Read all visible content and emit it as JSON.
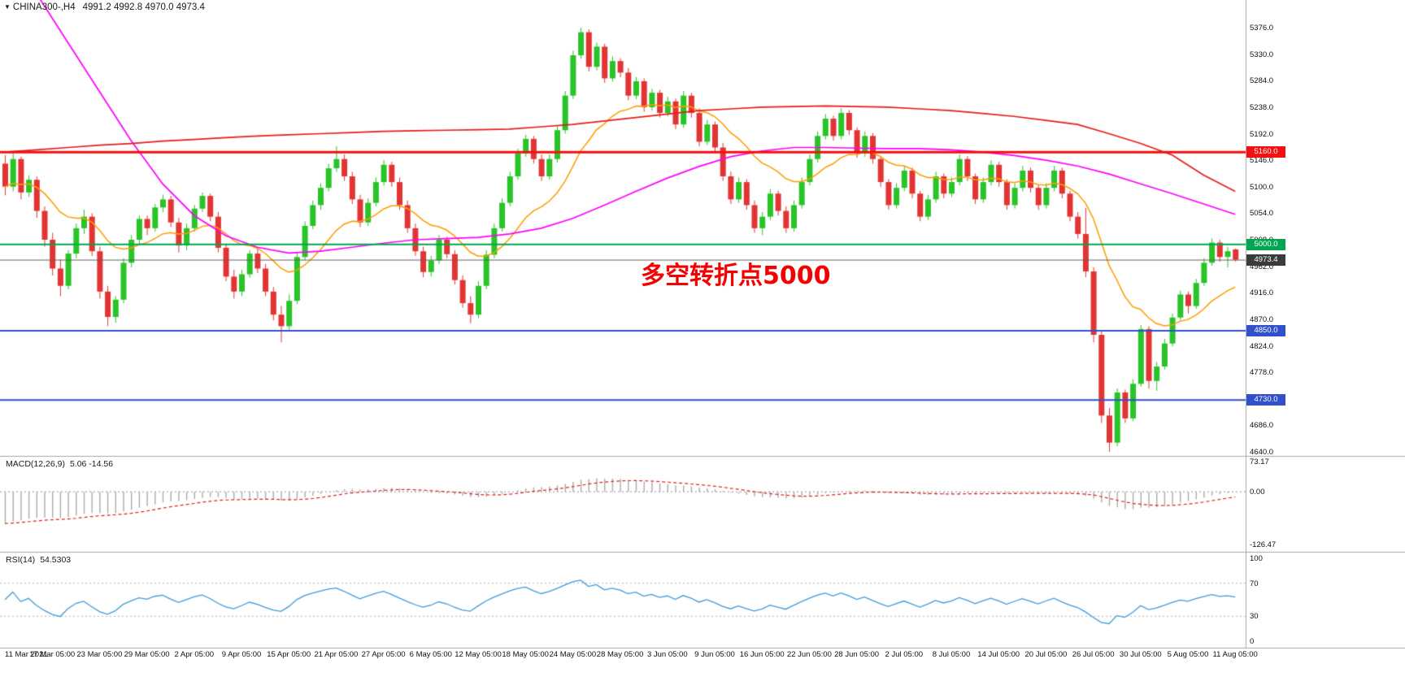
{
  "header": {
    "dropdown_icon": "▼",
    "symbol_label": "CHINA300-,H4",
    "ohlc_label": "4991.2 4992.8 4970.0 4973.4"
  },
  "annotation": {
    "text": "多空转折点5000",
    "color": "#f40000"
  },
  "indicators": {
    "macd": {
      "name": "MACD(12,26,9)",
      "values_label": "5.06 -14.56"
    },
    "rsi": {
      "name": "RSI(14)",
      "value_label": "54.5303"
    }
  },
  "levels": [
    {
      "label": "5160.0",
      "price": 5160.0,
      "color": "#f50f0f",
      "line_width": 3
    },
    {
      "label": "5000.0",
      "price": 5000.0,
      "color": "#00a651",
      "line_width": 2
    },
    {
      "label": "4850.0",
      "price": 4850.0,
      "color": "#3050cc",
      "line_width": 2
    },
    {
      "label": "4730.0",
      "price": 4730.0,
      "color": "#3050cc",
      "line_width": 2
    }
  ],
  "current_price": {
    "label": "4973.4",
    "price": 4973.4,
    "line_color": "#606060",
    "badge_bg": "#3b3b3b"
  },
  "axes": {
    "price_ticks": [
      "5376.0",
      "5330.0",
      "5284.0",
      "5238.0",
      "5192.0",
      "5146.0",
      "5100.0",
      "5054.0",
      "5008.0",
      "4962.0",
      "4916.0",
      "4870.0",
      "4824.0",
      "4778.0",
      "4732.0",
      "4686.0",
      "4640.0"
    ],
    "macd_ticks": [
      {
        "label": "73.17",
        "value": 73.17
      },
      {
        "label": "0.00",
        "value": 0
      },
      {
        "label": "-126.47",
        "value": -126.47
      }
    ],
    "rsi_ticks": [
      {
        "label": "100",
        "value": 100
      },
      {
        "label": "70",
        "value": 70
      },
      {
        "label": "30",
        "value": 30
      },
      {
        "label": "0",
        "value": 0
      }
    ],
    "time_labels": [
      "11 Mar 2021",
      "17 Mar 05:00",
      "23 Mar 05:00",
      "29 Mar 05:00",
      "2 Apr 05:00",
      "9 Apr 05:00",
      "15 Apr 05:00",
      "21 Apr 05:00",
      "27 Apr 05:00",
      "6 May 05:00",
      "12 May 05:00",
      "18 May 05:00",
      "24 May 05:00",
      "28 May 05:00",
      "3 Jun 05:00",
      "9 Jun 05:00",
      "16 Jun 05:00",
      "22 Jun 05:00",
      "28 Jun 05:00",
      "2 Jul 05:00",
      "8 Jul 05:00",
      "14 Jul 05:00",
      "20 Jul 05:00",
      "26 Jul 05:00",
      "30 Jul 05:00",
      "5 Aug 05:00",
      "11 Aug 05:00"
    ]
  },
  "colors": {
    "background": "#ffffff",
    "bull": "#28c428",
    "bear": "#e33434",
    "separator": "#a8a8a8",
    "macd_hist": "#ababab",
    "macd_signal": "#dd2222",
    "rsi_line": "#3e9bdc",
    "dotted_level": "#b5b5c5",
    "axis_text": "#111111"
  },
  "chart_data": {
    "type": "candlestick",
    "symbol": "CHINA300-",
    "timeframe": "H4",
    "last_ohlc": {
      "open": 4991.2,
      "high": 4992.8,
      "low": 4970.0,
      "close": 4973.4
    },
    "price_axis_range": [
      4640,
      5376
    ],
    "x_label_step": 6,
    "candles": [
      [
        5140,
        5155,
        5085,
        5100
      ],
      [
        5100,
        5160,
        5092,
        5148
      ],
      [
        5148,
        5152,
        5078,
        5090
      ],
      [
        5090,
        5120,
        5082,
        5112
      ],
      [
        5112,
        5118,
        5046,
        5058
      ],
      [
        5058,
        5066,
        4996,
        5008
      ],
      [
        5008,
        5020,
        4946,
        4958
      ],
      [
        4958,
        4974,
        4910,
        4928
      ],
      [
        4928,
        4990,
        4922,
        4984
      ],
      [
        4984,
        5036,
        4976,
        5028
      ],
      [
        5028,
        5060,
        5018,
        5048
      ],
      [
        5048,
        5054,
        4980,
        4988
      ],
      [
        4988,
        4996,
        4906,
        4918
      ],
      [
        4918,
        4928,
        4858,
        4874
      ],
      [
        4874,
        4910,
        4864,
        4904
      ],
      [
        4904,
        4976,
        4898,
        4968
      ],
      [
        4968,
        5016,
        4960,
        5008
      ],
      [
        5008,
        5050,
        5000,
        5044
      ],
      [
        5044,
        5050,
        5016,
        5028
      ],
      [
        5028,
        5070,
        5022,
        5064
      ],
      [
        5064,
        5086,
        5056,
        5078
      ],
      [
        5078,
        5084,
        5030,
        5038
      ],
      [
        5038,
        5046,
        4986,
        4998
      ],
      [
        4998,
        5036,
        4990,
        5028
      ],
      [
        5028,
        5068,
        5022,
        5062
      ],
      [
        5062,
        5090,
        5056,
        5084
      ],
      [
        5084,
        5088,
        5040,
        5048
      ],
      [
        5048,
        5056,
        4986,
        4994
      ],
      [
        4994,
        5000,
        4936,
        4944
      ],
      [
        4944,
        4956,
        4906,
        4918
      ],
      [
        4918,
        4956,
        4910,
        4948
      ],
      [
        4948,
        4990,
        4942,
        4984
      ],
      [
        4984,
        4994,
        4950,
        4958
      ],
      [
        4958,
        4966,
        4910,
        4918
      ],
      [
        4918,
        4926,
        4868,
        4878
      ],
      [
        4878,
        4893,
        4830,
        4858
      ],
      [
        4858,
        4913,
        4852,
        4902
      ],
      [
        4902,
        4986,
        4896,
        4978
      ],
      [
        4978,
        5040,
        4972,
        5032
      ],
      [
        5032,
        5076,
        5026,
        5068
      ],
      [
        5068,
        5106,
        5060,
        5098
      ],
      [
        5098,
        5140,
        5092,
        5132
      ],
      [
        5132,
        5170,
        5126,
        5148
      ],
      [
        5148,
        5156,
        5110,
        5118
      ],
      [
        5118,
        5126,
        5070,
        5078
      ],
      [
        5078,
        5086,
        5030,
        5038
      ],
      [
        5038,
        5080,
        5032,
        5072
      ],
      [
        5072,
        5116,
        5066,
        5108
      ],
      [
        5108,
        5146,
        5102,
        5138
      ],
      [
        5138,
        5143,
        5100,
        5108
      ],
      [
        5108,
        5116,
        5060,
        5068
      ],
      [
        5068,
        5076,
        5020,
        5028
      ],
      [
        5028,
        5036,
        4980,
        4988
      ],
      [
        4988,
        4996,
        4943,
        4952
      ],
      [
        4952,
        4980,
        4944,
        4972
      ],
      [
        4972,
        5016,
        4966,
        5008
      ],
      [
        5008,
        5013,
        4976,
        4983
      ],
      [
        4983,
        4990,
        4930,
        4938
      ],
      [
        4938,
        4946,
        4890,
        4898
      ],
      [
        4898,
        4910,
        4863,
        4878
      ],
      [
        4878,
        4936,
        4872,
        4928
      ],
      [
        4928,
        4990,
        4922,
        4982
      ],
      [
        4982,
        5036,
        4976,
        5028
      ],
      [
        5028,
        5080,
        5022,
        5072
      ],
      [
        5072,
        5126,
        5066,
        5118
      ],
      [
        5118,
        5166,
        5112,
        5158
      ],
      [
        5158,
        5190,
        5152,
        5183
      ],
      [
        5183,
        5188,
        5140,
        5148
      ],
      [
        5148,
        5156,
        5110,
        5118
      ],
      [
        5118,
        5156,
        5112,
        5148
      ],
      [
        5148,
        5206,
        5142,
        5198
      ],
      [
        5198,
        5266,
        5192,
        5258
      ],
      [
        5258,
        5336,
        5252,
        5328
      ],
      [
        5328,
        5376,
        5322,
        5368
      ],
      [
        5368,
        5373,
        5300,
        5308
      ],
      [
        5308,
        5350,
        5302,
        5343
      ],
      [
        5343,
        5348,
        5280,
        5288
      ],
      [
        5288,
        5326,
        5282,
        5318
      ],
      [
        5318,
        5323,
        5290,
        5298
      ],
      [
        5298,
        5306,
        5250,
        5258
      ],
      [
        5258,
        5290,
        5252,
        5283
      ],
      [
        5283,
        5288,
        5230,
        5238
      ],
      [
        5238,
        5270,
        5232,
        5263
      ],
      [
        5263,
        5268,
        5220,
        5228
      ],
      [
        5228,
        5256,
        5222,
        5248
      ],
      [
        5248,
        5253,
        5200,
        5208
      ],
      [
        5208,
        5266,
        5202,
        5258
      ],
      [
        5258,
        5263,
        5220,
        5228
      ],
      [
        5228,
        5236,
        5170,
        5178
      ],
      [
        5178,
        5216,
        5172,
        5208
      ],
      [
        5208,
        5213,
        5160,
        5168
      ],
      [
        5168,
        5176,
        5110,
        5118
      ],
      [
        5118,
        5126,
        5070,
        5078
      ],
      [
        5078,
        5116,
        5072,
        5108
      ],
      [
        5108,
        5113,
        5060,
        5068
      ],
      [
        5068,
        5076,
        5020,
        5028
      ],
      [
        5028,
        5056,
        5016,
        5048
      ],
      [
        5048,
        5096,
        5042,
        5088
      ],
      [
        5088,
        5093,
        5050,
        5058
      ],
      [
        5058,
        5066,
        5020,
        5028
      ],
      [
        5028,
        5076,
        5022,
        5068
      ],
      [
        5068,
        5116,
        5062,
        5108
      ],
      [
        5108,
        5156,
        5102,
        5148
      ],
      [
        5148,
        5196,
        5142,
        5188
      ],
      [
        5188,
        5226,
        5182,
        5218
      ],
      [
        5218,
        5223,
        5180,
        5188
      ],
      [
        5188,
        5236,
        5182,
        5228
      ],
      [
        5228,
        5233,
        5190,
        5198
      ],
      [
        5198,
        5203,
        5150,
        5158
      ],
      [
        5158,
        5196,
        5152,
        5188
      ],
      [
        5188,
        5193,
        5140,
        5148
      ],
      [
        5148,
        5153,
        5100,
        5108
      ],
      [
        5108,
        5113,
        5060,
        5068
      ],
      [
        5068,
        5106,
        5062,
        5098
      ],
      [
        5098,
        5136,
        5092,
        5128
      ],
      [
        5128,
        5133,
        5080,
        5088
      ],
      [
        5088,
        5093,
        5040,
        5048
      ],
      [
        5048,
        5086,
        5042,
        5078
      ],
      [
        5078,
        5126,
        5072,
        5118
      ],
      [
        5118,
        5123,
        5080,
        5088
      ],
      [
        5088,
        5116,
        5082,
        5108
      ],
      [
        5108,
        5156,
        5102,
        5148
      ],
      [
        5148,
        5153,
        5110,
        5118
      ],
      [
        5118,
        5123,
        5070,
        5078
      ],
      [
        5078,
        5116,
        5072,
        5108
      ],
      [
        5108,
        5146,
        5102,
        5138
      ],
      [
        5138,
        5143,
        5100,
        5108
      ],
      [
        5108,
        5113,
        5060,
        5068
      ],
      [
        5068,
        5106,
        5062,
        5098
      ],
      [
        5098,
        5136,
        5092,
        5128
      ],
      [
        5128,
        5133,
        5090,
        5098
      ],
      [
        5098,
        5103,
        5060,
        5068
      ],
      [
        5068,
        5106,
        5062,
        5098
      ],
      [
        5098,
        5136,
        5092,
        5128
      ],
      [
        5128,
        5133,
        5080,
        5088
      ],
      [
        5088,
        5093,
        5040,
        5048
      ],
      [
        5048,
        5056,
        5010,
        5018
      ],
      [
        5018,
        5063,
        4943,
        4953
      ],
      [
        4953,
        4960,
        4830,
        4843
      ],
      [
        4843,
        4850,
        4690,
        4703
      ],
      [
        4703,
        4716,
        4640,
        4656
      ],
      [
        4656,
        4750,
        4650,
        4743
      ],
      [
        4743,
        4748,
        4690,
        4698
      ],
      [
        4698,
        4766,
        4693,
        4758
      ],
      [
        4758,
        4860,
        4753,
        4853
      ],
      [
        4853,
        4858,
        4750,
        4763
      ],
      [
        4763,
        4796,
        4746,
        4788
      ],
      [
        4788,
        4836,
        4783,
        4828
      ],
      [
        4828,
        4880,
        4823,
        4873
      ],
      [
        4873,
        4920,
        4868,
        4913
      ],
      [
        4913,
        4918,
        4880,
        4893
      ],
      [
        4893,
        4940,
        4888,
        4933
      ],
      [
        4933,
        4976,
        4928,
        4968
      ],
      [
        4968,
        5010,
        4963,
        5003
      ],
      [
        5003,
        5008,
        4970,
        4978
      ],
      [
        4978,
        4996,
        4960,
        4988
      ],
      [
        4991.2,
        4992.8,
        4970.0,
        4973.4
      ]
    ],
    "overlays": {
      "ma_magenta": {
        "color": "#ff00ff",
        "sample_step": 4,
        "values": [
          5520,
          5435,
          5350,
          5265,
          5180,
          5105,
          5050,
          5015,
          4995,
          4985,
          4988,
          4995,
          5002,
          5008,
          5010,
          5012,
          5018,
          5028,
          5045,
          5068,
          5092,
          5115,
          5135,
          5152,
          5162,
          5168,
          5168,
          5167,
          5166,
          5166,
          5164,
          5160,
          5154,
          5146,
          5136,
          5122,
          5105,
          5088,
          5070,
          5052
        ]
      },
      "ma_red": {
        "color": "#e81c1c",
        "sample_step": 4,
        "values": [
          5160,
          5164,
          5168,
          5172,
          5175,
          5179,
          5182,
          5185,
          5188,
          5190,
          5192,
          5194,
          5196,
          5197,
          5198,
          5199,
          5200,
          5204,
          5208,
          5214,
          5220,
          5226,
          5232,
          5235,
          5238,
          5239,
          5240,
          5239,
          5238,
          5235,
          5232,
          5227,
          5222,
          5215,
          5208,
          5192,
          5175,
          5155,
          5120,
          5092
        ]
      },
      "ma_orange": {
        "color": "#ff9c00",
        "type": "ema",
        "period": 16
      }
    },
    "indicators": {
      "macd": {
        "fast": 12,
        "slow": 26,
        "signal": 9,
        "display_scale": 0.4,
        "ema_fast_seed": 5180,
        "ema_slow_seed": 5380,
        "range": [
          -126.47,
          73.17
        ],
        "current_main": 5.06,
        "current_signal": -14.56
      },
      "rsi": {
        "period": 14,
        "seed_avg_gain": 8,
        "seed_avg_loss": 8,
        "range": [
          0,
          100
        ],
        "levels": [
          30,
          70
        ],
        "current": 54.5303
      }
    }
  }
}
